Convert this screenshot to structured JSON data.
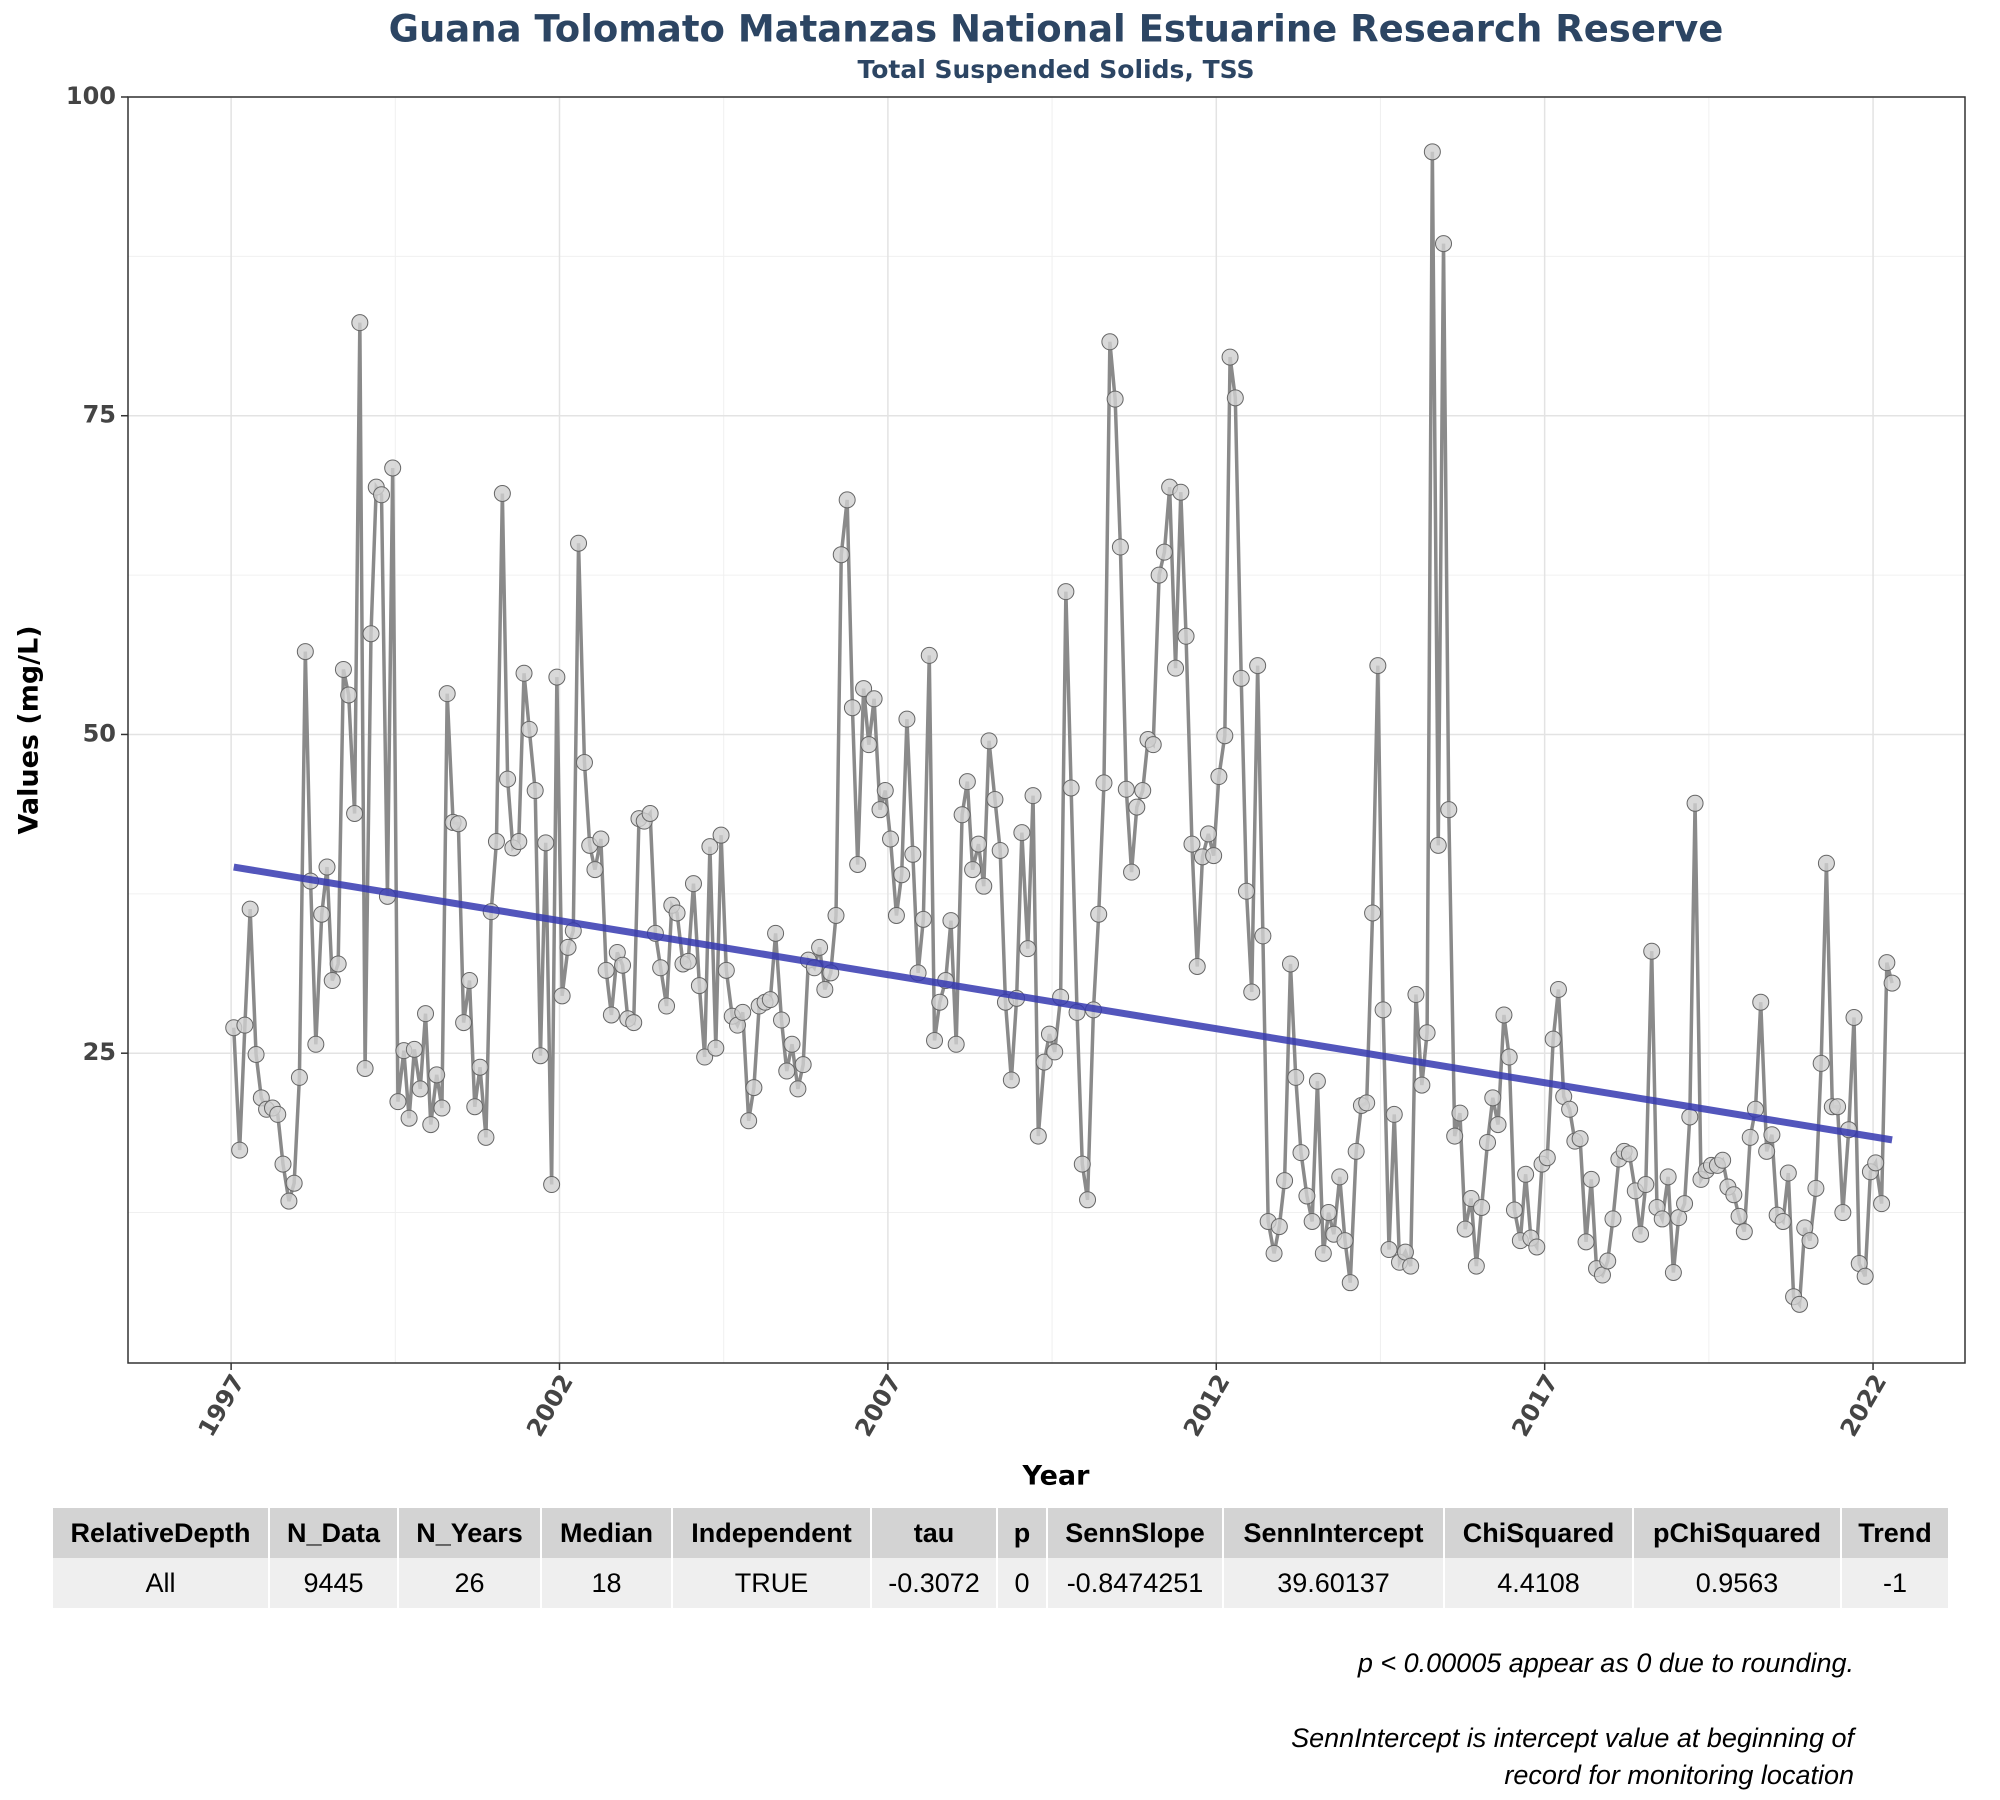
{
  "chart_data": {
    "type": "line",
    "title": "Guana Tolomato Matanzas National Estuarine Research Reserve",
    "subtitle": "Total Suspended Solids, TSS",
    "x_label": "Year",
    "y_label": "Values (mg/L)",
    "xlim": [
      1995.43,
      2023.4
    ],
    "xticks": [
      1997,
      2002,
      2007,
      2012,
      2017,
      2022
    ],
    "xminor": [
      1999.5,
      2004.5,
      2009.5,
      2014.5,
      2019.5
    ],
    "ylim": [
      0.7,
      100
    ],
    "yticks": [
      25,
      50,
      75,
      100
    ],
    "yminor": [
      12.5,
      37.5,
      62.5,
      87.5
    ],
    "grid": true,
    "color": "#8a8a8a",
    "marker_color": "#d0d0d0",
    "x": [
      1997.04,
      1997.13,
      1997.21,
      1997.29,
      1997.38,
      1997.46,
      1997.54,
      1997.63,
      1997.71,
      1997.79,
      1997.88,
      1997.96,
      1998.04,
      1998.13,
      1998.21,
      1998.29,
      1998.38,
      1998.46,
      1998.54,
      1998.63,
      1998.71,
      1998.79,
      1998.88,
      1998.96,
      1999.04,
      1999.13,
      1999.21,
      1999.29,
      1999.38,
      1999.46,
      1999.54,
      1999.63,
      1999.71,
      1999.79,
      1999.88,
      1999.96,
      2000.04,
      2000.13,
      2000.21,
      2000.29,
      2000.38,
      2000.46,
      2000.54,
      2000.63,
      2000.71,
      2000.79,
      2000.88,
      2000.96,
      2001.04,
      2001.13,
      2001.21,
      2001.29,
      2001.38,
      2001.46,
      2001.54,
      2001.63,
      2001.71,
      2001.79,
      2001.88,
      2001.96,
      2002.04,
      2002.13,
      2002.21,
      2002.29,
      2002.38,
      2002.46,
      2002.54,
      2002.63,
      2002.71,
      2002.79,
      2002.88,
      2002.96,
      2003.04,
      2003.13,
      2003.21,
      2003.29,
      2003.38,
      2003.46,
      2003.54,
      2003.63,
      2003.71,
      2003.79,
      2003.88,
      2003.96,
      2004.04,
      2004.13,
      2004.21,
      2004.29,
      2004.38,
      2004.46,
      2004.54,
      2004.63,
      2004.71,
      2004.79,
      2004.88,
      2004.96,
      2005.04,
      2005.13,
      2005.21,
      2005.29,
      2005.38,
      2005.46,
      2005.54,
      2005.63,
      2005.71,
      2005.79,
      2005.88,
      2005.96,
      2006.04,
      2006.13,
      2006.21,
      2006.29,
      2006.38,
      2006.46,
      2006.54,
      2006.63,
      2006.71,
      2006.79,
      2006.88,
      2006.96,
      2007.04,
      2007.13,
      2007.21,
      2007.29,
      2007.38,
      2007.46,
      2007.54,
      2007.63,
      2007.71,
      2007.79,
      2007.88,
      2007.96,
      2008.04,
      2008.13,
      2008.21,
      2008.29,
      2008.38,
      2008.46,
      2008.54,
      2008.63,
      2008.71,
      2008.79,
      2008.88,
      2008.96,
      2009.04,
      2009.13,
      2009.21,
      2009.29,
      2009.38,
      2009.46,
      2009.54,
      2009.63,
      2009.71,
      2009.79,
      2009.88,
      2009.96,
      2010.04,
      2010.13,
      2010.21,
      2010.29,
      2010.38,
      2010.46,
      2010.54,
      2010.63,
      2010.71,
      2010.79,
      2010.88,
      2010.96,
      2011.04,
      2011.13,
      2011.21,
      2011.29,
      2011.38,
      2011.46,
      2011.54,
      2011.63,
      2011.71,
      2011.79,
      2011.88,
      2011.96,
      2012.04,
      2012.13,
      2012.21,
      2012.29,
      2012.38,
      2012.46,
      2012.54,
      2012.63,
      2012.71,
      2012.79,
      2012.88,
      2012.96,
      2013.04,
      2013.13,
      2013.21,
      2013.29,
      2013.38,
      2013.46,
      2013.54,
      2013.63,
      2013.71,
      2013.79,
      2013.88,
      2013.96,
      2014.04,
      2014.13,
      2014.21,
      2014.29,
      2014.38,
      2014.46,
      2014.54,
      2014.63,
      2014.71,
      2014.79,
      2014.88,
      2014.96,
      2015.04,
      2015.13,
      2015.21,
      2015.29,
      2015.38,
      2015.46,
      2015.54,
      2015.63,
      2015.71,
      2015.79,
      2015.88,
      2015.96,
      2016.04,
      2016.13,
      2016.21,
      2016.29,
      2016.38,
      2016.46,
      2016.54,
      2016.63,
      2016.71,
      2016.79,
      2016.88,
      2016.96,
      2017.04,
      2017.13,
      2017.21,
      2017.29,
      2017.38,
      2017.46,
      2017.54,
      2017.63,
      2017.71,
      2017.79,
      2017.88,
      2017.96,
      2018.04,
      2018.13,
      2018.21,
      2018.29,
      2018.38,
      2018.46,
      2018.54,
      2018.63,
      2018.71,
      2018.79,
      2018.88,
      2018.96,
      2019.04,
      2019.13,
      2019.21,
      2019.29,
      2019.38,
      2019.46,
      2019.54,
      2019.63,
      2019.71,
      2019.79,
      2019.88,
      2019.96,
      2020.04,
      2020.13,
      2020.21,
      2020.29,
      2020.38,
      2020.46,
      2020.54,
      2020.63,
      2020.71,
      2020.79,
      2020.88,
      2020.96,
      2021.04,
      2021.13,
      2021.21,
      2021.29,
      2021.38,
      2021.46,
      2021.54,
      2021.63,
      2021.71,
      2021.79,
      2021.88,
      2021.96,
      2022.04,
      2022.13,
      2022.21,
      2022.29
    ],
    "values": [
      27,
      17.4,
      27.2,
      36.3,
      24.9,
      21.5,
      20.6,
      20.7,
      20.2,
      16.3,
      13.4,
      14.8,
      23.1,
      56.5,
      38.5,
      25.7,
      35.9,
      39.6,
      30.7,
      32,
      55.1,
      53.1,
      43.8,
      82.3,
      23.8,
      57.9,
      69.4,
      68.8,
      37.3,
      70.9,
      21.2,
      25.2,
      19.9,
      25.3,
      22.2,
      28.1,
      19.4,
      23.3,
      20.7,
      53.2,
      43.1,
      43,
      27.4,
      30.7,
      20.8,
      23.9,
      18.4,
      36.1,
      41.6,
      68.9,
      46.5,
      41.1,
      41.6,
      54.8,
      50.4,
      45.6,
      24.8,
      41.5,
      14.7,
      54.5,
      29.5,
      33.3,
      34.6,
      65,
      47.8,
      41.3,
      39.4,
      41.8,
      31.5,
      28,
      32.9,
      31.9,
      27.7,
      27.4,
      43.4,
      43.2,
      43.8,
      34.4,
      31.7,
      28.7,
      36.6,
      36,
      32,
      32.2,
      38.3,
      30.3,
      24.7,
      41.2,
      25.4,
      42.1,
      31.5,
      27.9,
      27.2,
      28.2,
      19.7,
      22.3,
      28.7,
      29,
      29.2,
      34.4,
      27.6,
      23.6,
      25.7,
      22.2,
      24.1,
      32.3,
      31.7,
      33.3,
      30,
      31.3,
      35.8,
      64.1,
      68.4,
      52.1,
      39.8,
      53.6,
      49.2,
      52.8,
      44.1,
      45.6,
      41.8,
      35.8,
      39,
      51.2,
      40.6,
      31.3,
      35.5,
      56.2,
      26,
      29,
      30.7,
      35.4,
      25.7,
      43.7,
      46.3,
      39.4,
      41.4,
      38.1,
      49.5,
      44.9,
      40.9,
      29,
      22.9,
      29.3,
      42.3,
      33.2,
      45.2,
      18.5,
      24.3,
      26.5,
      25.1,
      29.4,
      61.2,
      45.8,
      28.2,
      16.3,
      13.5,
      28.4,
      35.9,
      46.2,
      80.8,
      76.3,
      64.7,
      45.7,
      39.2,
      44.3,
      45.6,
      49.6,
      49.2,
      62.5,
      64.3,
      69.4,
      55.2,
      69,
      57.7,
      41.4,
      31.8,
      40.4,
      42.2,
      40.5,
      46.7,
      49.9,
      79.6,
      76.4,
      54.4,
      37.7,
      29.8,
      55.4,
      34.2,
      11.8,
      9.3,
      11.4,
      15,
      32,
      23.1,
      17.2,
      13.8,
      11.8,
      22.8,
      9.3,
      12.5,
      10.8,
      15.3,
      10.3,
      7,
      17.3,
      20.9,
      21.1,
      36,
      55.4,
      28.4,
      9.6,
      20.2,
      8.6,
      9.4,
      8.3,
      29.6,
      22.5,
      26.6,
      95.7,
      41.3,
      88.5,
      44.1,
      18.5,
      20.3,
      11.2,
      13.6,
      8.3,
      12.9,
      18,
      21.5,
      19.4,
      28,
      24.7,
      12.7,
      10.3,
      15.5,
      10.5,
      9.8,
      16.3,
      16.8,
      26.1,
      30,
      21.6,
      20.6,
      18.1,
      18.3,
      10.2,
      15.1,
      8.1,
      7.6,
      8.7,
      12,
      16.7,
      17.3,
      17.1,
      14.2,
      10.8,
      14.7,
      33,
      12.9,
      12,
      15.3,
      7.8,
      12.1,
      13.2,
      20,
      44.6,
      15.1,
      15.8,
      16.2,
      16.2,
      16.6,
      14.5,
      13.9,
      12.2,
      11,
      18.4,
      20.6,
      29,
      17.3,
      18.6,
      12.3,
      11.8,
      15.6,
      5.9,
      5.3,
      11.3,
      10.3,
      14.4,
      24.2,
      39.9,
      20.8,
      20.8,
      12.5,
      19,
      27.8,
      8.5,
      7.5,
      15.7,
      16.4,
      13.2,
      32.1,
      30.5
    ],
    "trend": {
      "x": [
        1997.04,
        2022.29
      ],
      "values": [
        39.6,
        18.2
      ],
      "color": "#3538b0"
    }
  },
  "table": {
    "columns": [
      "RelativeDepth",
      "N_Data",
      "N_Years",
      "Median",
      "Independent",
      "tau",
      "p",
      "SennSlope",
      "SennIntercept",
      "ChiSquared",
      "pChiSquared",
      "Trend"
    ],
    "rows": [
      [
        "All",
        "9445",
        "26",
        "18",
        "TRUE",
        "-0.3072",
        "0",
        "-0.8474251",
        "39.60137",
        "4.4108",
        "0.9563",
        "-1"
      ]
    ]
  },
  "notes": [
    "p < 0.00005 appear as 0 due to rounding.",
    "SennIntercept is intercept value at beginning of record for monitoring location"
  ]
}
